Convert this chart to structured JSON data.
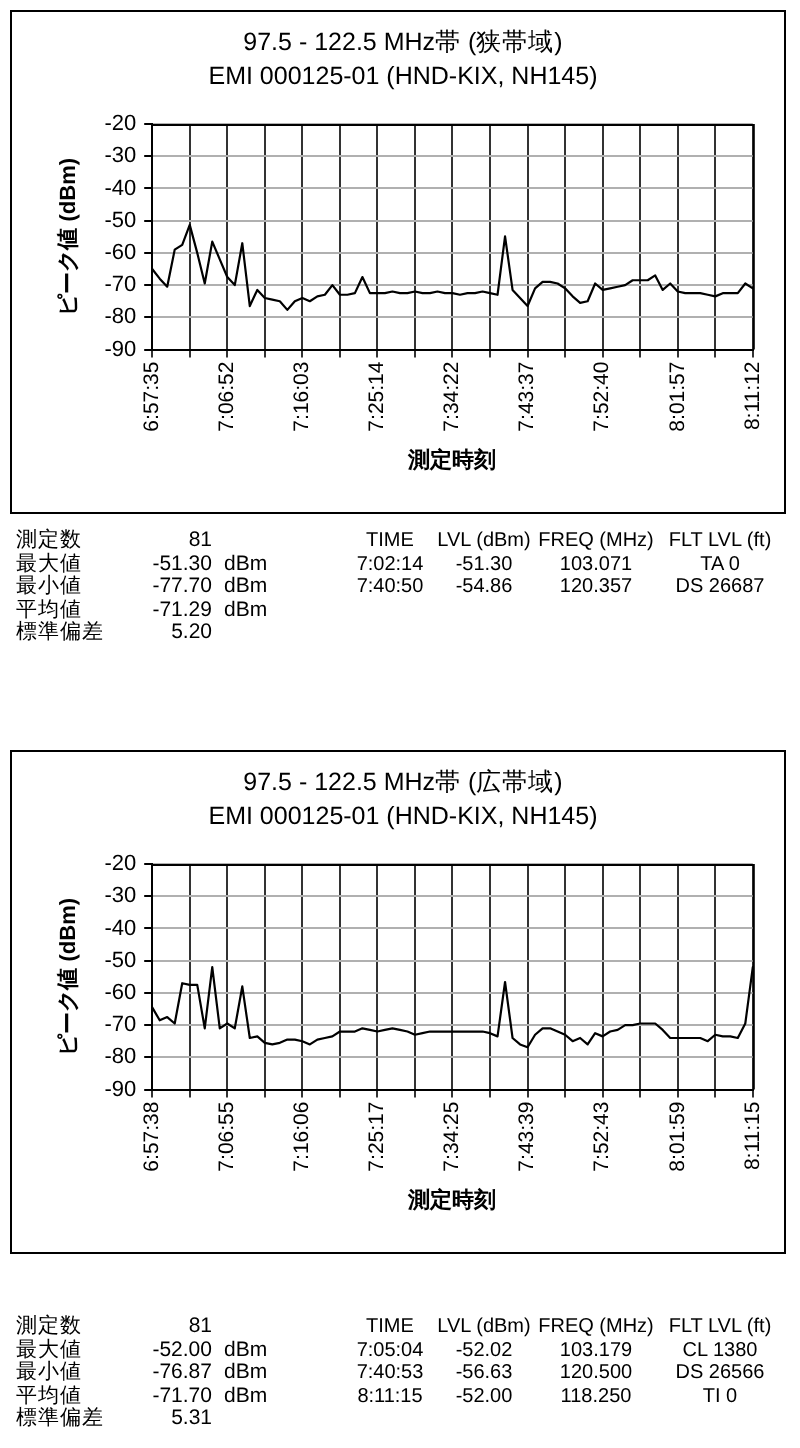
{
  "chart_data": [
    {
      "type": "line",
      "title": "97.5 - 122.5 MHz帯 (狭帯域)",
      "subtitle": "EMI 000125-01 (HND-KIX, NH145)",
      "xlabel": "測定時刻",
      "ylabel": "ピーク値 (dBm)",
      "categories": [
        "6:57:35",
        null,
        null,
        null,
        null,
        null,
        null,
        null,
        null,
        null,
        "7:06:52",
        null,
        null,
        null,
        null,
        null,
        null,
        null,
        null,
        null,
        "7:16:03",
        null,
        null,
        null,
        null,
        null,
        null,
        null,
        null,
        null,
        "7:25:14",
        null,
        null,
        null,
        null,
        null,
        null,
        null,
        null,
        null,
        "7:34:22",
        null,
        null,
        null,
        null,
        null,
        null,
        null,
        null,
        null,
        "7:43:37",
        null,
        null,
        null,
        null,
        null,
        null,
        null,
        null,
        null,
        "7:52:40",
        null,
        null,
        null,
        null,
        null,
        null,
        null,
        null,
        null,
        "8:01:57",
        null,
        null,
        null,
        null,
        null,
        null,
        null,
        null,
        null,
        "8:11:12"
      ],
      "values": [
        -65,
        -68,
        -70.5,
        -59,
        -57.5,
        -51.3,
        -60,
        -69.5,
        -56.5,
        -62,
        -67.5,
        -70,
        -57,
        -76.5,
        -71.5,
        -74,
        -74.5,
        -75,
        -77.7,
        -75,
        -74,
        -75,
        -73.5,
        -73,
        -70,
        -73,
        -73,
        -72.5,
        -67.5,
        -72.5,
        -72.5,
        -72.5,
        -72,
        -72.5,
        -72.5,
        -72,
        -72.5,
        -72.5,
        -72,
        -72.5,
        -72.5,
        -73,
        -72.5,
        -72.5,
        -72,
        -72.5,
        -73,
        -54.86,
        -71.5,
        -74,
        -76.5,
        -71,
        -69,
        -69,
        -69.5,
        -71,
        -73.5,
        -75.5,
        -75,
        -69.5,
        -71.5,
        -71,
        -70.5,
        -70,
        -68.5,
        -68.5,
        -68.5,
        -67,
        -71.5,
        -69.5,
        -72,
        -72.5,
        -72.5,
        -72.5,
        -73,
        -73.5,
        -72.5,
        -72.5,
        -72.5,
        -69.5,
        -71
      ],
      "color": "#000000",
      "ylim": [
        -90,
        -20
      ],
      "yticks": [
        -90,
        -80,
        -70,
        -60,
        -50,
        -40,
        -30,
        -20
      ],
      "grid": true,
      "marker": "none",
      "annotations": [
        "測定数  81\n最大値  -51.30  dBm\n最小値  -77.70  dBm\n平均値  -71.29  dBm\n標準偏差  5.20",
        "TIME  LVL (dBm)  FREQ (MHz)  FLT LVL (ft)\n7:02:14  -51.30  103.071  TA 0\n7:40:50  -54.86  120.357  DS 26687"
      ]
    },
    {
      "type": "line",
      "title": "97.5 - 122.5 MHz帯 (広帯域)",
      "subtitle": "EMI 000125-01 (HND-KIX, NH145)",
      "xlabel": "測定時刻",
      "ylabel": "ピーク値 (dBm)",
      "categories": [
        "6:57:38",
        null,
        null,
        null,
        null,
        null,
        null,
        null,
        null,
        null,
        "7:06:55",
        null,
        null,
        null,
        null,
        null,
        null,
        null,
        null,
        null,
        "7:16:06",
        null,
        null,
        null,
        null,
        null,
        null,
        null,
        null,
        null,
        "7:25:17",
        null,
        null,
        null,
        null,
        null,
        null,
        null,
        null,
        null,
        "7:34:25",
        null,
        null,
        null,
        null,
        null,
        null,
        null,
        null,
        null,
        "7:43:39",
        null,
        null,
        null,
        null,
        null,
        null,
        null,
        null,
        null,
        "7:52:43",
        null,
        null,
        null,
        null,
        null,
        null,
        null,
        null,
        null,
        "8:01:59",
        null,
        null,
        null,
        null,
        null,
        null,
        null,
        null,
        null,
        "8:11:15"
      ],
      "values": [
        -64.5,
        -68.5,
        -67.5,
        -69.5,
        -57,
        -57.5,
        -57.5,
        -71,
        -52.02,
        -71,
        -69.5,
        -71,
        -58,
        -74,
        -73.5,
        -75.5,
        -76,
        -75.5,
        -74.5,
        -74.5,
        -75,
        -76,
        -74.5,
        -74,
        -73.5,
        -72,
        -72,
        -72,
        -71,
        -71.5,
        -72,
        -71.5,
        -71,
        -71.5,
        -72,
        -73,
        -72.5,
        -72,
        -72,
        -72,
        -72,
        -72,
        -72,
        -72,
        -72,
        -72.5,
        -73.5,
        -56.63,
        -74,
        -76,
        -76.87,
        -73,
        -71,
        -71,
        -72,
        -73,
        -75,
        -74,
        -76,
        -72.5,
        -73.5,
        -72,
        -71.5,
        -70,
        -70,
        -69.5,
        -69.5,
        -69.5,
        -71.5,
        -74,
        -74,
        -74,
        -74,
        -74,
        -75,
        -73,
        -73.5,
        -73.5,
        -74,
        -69.5,
        -52
      ],
      "color": "#000000",
      "ylim": [
        -90,
        -20
      ],
      "yticks": [
        -90,
        -80,
        -70,
        -60,
        -50,
        -40,
        -30,
        -20
      ],
      "grid": true,
      "marker": "none",
      "annotations": [
        "測定数  81\n最大値  -52.00  dBm\n最小値  -76.87  dBm\n平均値  -71.70  dBm\n標準偏差  5.31",
        "TIME  LVL (dBm)  FREQ (MHz)  FLT LVL (ft)\n7:05:04  -52.02  103.179  CL 1380\n7:40:53  -56.63  120.500  DS 26566\n8:11:15  -52.00  118.250  TI 0"
      ]
    }
  ]
}
